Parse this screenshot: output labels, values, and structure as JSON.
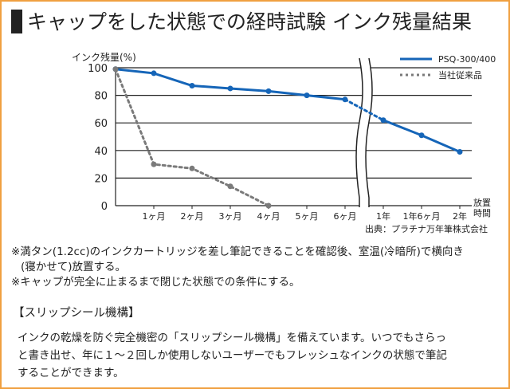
{
  "title": "キャップをした状態での経時試験 インク残量結果",
  "chart_data": {
    "type": "line",
    "y_label": "インク残量(%)",
    "x_label": [
      "放置",
      "時間"
    ],
    "source": "出典：プラチナ万年筆株式会社",
    "categories": [
      null,
      "1ヶ月",
      "2ヶ月",
      "3ヶ月",
      "4ヶ月",
      "5ヶ月",
      "6ヶ月",
      "1年",
      "1年6ヶ月",
      "2年"
    ],
    "axis_break_after": "6ヶ月",
    "ylim": [
      0,
      100
    ],
    "yticks": [
      0,
      20,
      40,
      60,
      80,
      100
    ],
    "grid": true,
    "series": [
      {
        "name": "PSQ-300/400",
        "color": "#1565b8",
        "dashed": false,
        "values": [
          99,
          96,
          87,
          85,
          83,
          80,
          77,
          62,
          51,
          39
        ]
      },
      {
        "name": "当社従来品",
        "color": "#7a7a7a",
        "dashed": true,
        "values": [
          99,
          30,
          27,
          14,
          0,
          null,
          null,
          null,
          null,
          null
        ]
      }
    ]
  },
  "notes": [
    [
      "※満タン(1.2cc)のインクカートリッジを差し筆記できることを確認後、室温(冷暗所)で横向き",
      "(寝かせて)放置する。"
    ],
    [
      "※キャップが完全に止まるまで閉じた状態での条件にする。"
    ]
  ],
  "section": {
    "heading": "【スリップシール機構】",
    "lines": [
      "インクの乾燥を防ぐ完全機密の「スリップシール機構」を備えています。いつでもさらっ",
      "と書き出せ、年に１～２回しか使用しないユーザーでもフレッシュなインクの状態で筆記",
      "することができます。"
    ]
  }
}
